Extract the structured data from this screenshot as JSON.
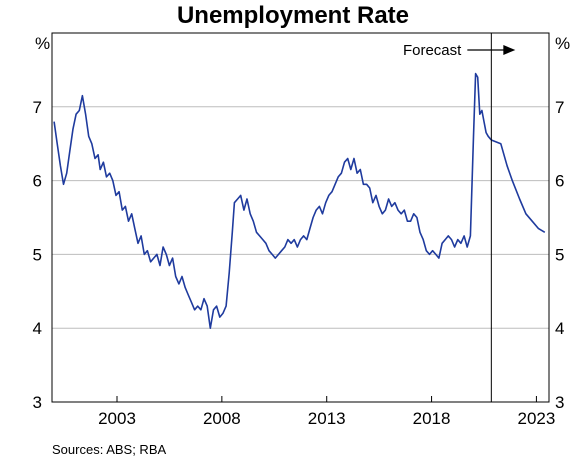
{
  "chart_data": {
    "type": "line",
    "title": "Unemployment Rate",
    "y_unit_left": "%",
    "y_unit_right": "%",
    "ylim": [
      3,
      8
    ],
    "yticks": [
      3,
      4,
      5,
      6,
      7
    ],
    "xlim": [
      1999.9,
      2023.6
    ],
    "xticks": [
      2003,
      2008,
      2013,
      2018,
      2023
    ],
    "grid": "horizontal",
    "forecast_start": 2020.85,
    "forecast_label": "Forecast",
    "source": "Sources: ABS; RBA",
    "series": [
      {
        "role": "actual",
        "color": "#1f3b9e",
        "x": [
          2000.0,
          2000.15,
          2000.3,
          2000.45,
          2000.6,
          2000.75,
          2000.9,
          2001.05,
          2001.2,
          2001.35,
          2001.5,
          2001.65,
          2001.8,
          2001.95,
          2002.1,
          2002.2,
          2002.35,
          2002.5,
          2002.65,
          2002.8,
          2002.95,
          2003.1,
          2003.25,
          2003.4,
          2003.55,
          2003.7,
          2003.85,
          2004.0,
          2004.15,
          2004.3,
          2004.45,
          2004.6,
          2004.75,
          2004.9,
          2005.05,
          2005.2,
          2005.35,
          2005.5,
          2005.65,
          2005.8,
          2005.95,
          2006.1,
          2006.25,
          2006.4,
          2006.55,
          2006.7,
          2006.85,
          2007.0,
          2007.15,
          2007.3,
          2007.45,
          2007.6,
          2007.75,
          2007.9,
          2008.05,
          2008.2,
          2008.35,
          2008.5,
          2008.6,
          2008.75,
          2008.9,
          2009.05,
          2009.2,
          2009.35,
          2009.5,
          2009.65,
          2009.8,
          2009.95,
          2010.1,
          2010.25,
          2010.4,
          2010.55,
          2010.7,
          2010.85,
          2011.0,
          2011.15,
          2011.3,
          2011.45,
          2011.6,
          2011.75,
          2011.9,
          2012.05,
          2012.2,
          2012.35,
          2012.5,
          2012.65,
          2012.8,
          2012.95,
          2013.1,
          2013.25,
          2013.4,
          2013.55,
          2013.7,
          2013.85,
          2014.0,
          2014.15,
          2014.3,
          2014.45,
          2014.6,
          2014.75,
          2014.9,
          2015.05,
          2015.2,
          2015.35,
          2015.5,
          2015.65,
          2015.8,
          2015.95,
          2016.1,
          2016.25,
          2016.4,
          2016.55,
          2016.7,
          2016.85,
          2017.0,
          2017.15,
          2017.3,
          2017.45,
          2017.6,
          2017.75,
          2017.9,
          2018.05,
          2018.2,
          2018.35,
          2018.5,
          2018.65,
          2018.8,
          2018.95,
          2019.1,
          2019.25,
          2019.4,
          2019.55,
          2019.7,
          2019.85,
          2020.0,
          2020.1,
          2020.2,
          2020.3,
          2020.4,
          2020.5,
          2020.6,
          2020.7,
          2020.85
        ],
        "y": [
          6.8,
          6.5,
          6.2,
          5.95,
          6.1,
          6.4,
          6.7,
          6.9,
          6.95,
          7.15,
          6.9,
          6.6,
          6.5,
          6.3,
          6.35,
          6.15,
          6.25,
          6.05,
          6.1,
          6.0,
          5.8,
          5.85,
          5.6,
          5.65,
          5.45,
          5.55,
          5.35,
          5.15,
          5.25,
          5.0,
          5.05,
          4.9,
          4.95,
          5.0,
          4.85,
          5.1,
          5.0,
          4.85,
          4.95,
          4.7,
          4.6,
          4.7,
          4.55,
          4.45,
          4.35,
          4.25,
          4.3,
          4.25,
          4.4,
          4.3,
          4.0,
          4.25,
          4.3,
          4.15,
          4.2,
          4.3,
          4.75,
          5.3,
          5.7,
          5.75,
          5.8,
          5.6,
          5.75,
          5.55,
          5.45,
          5.3,
          5.25,
          5.2,
          5.15,
          5.05,
          5.0,
          4.95,
          5.0,
          5.05,
          5.1,
          5.2,
          5.15,
          5.2,
          5.1,
          5.2,
          5.25,
          5.2,
          5.35,
          5.5,
          5.6,
          5.65,
          5.55,
          5.7,
          5.8,
          5.85,
          5.95,
          6.05,
          6.1,
          6.25,
          6.3,
          6.15,
          6.3,
          6.1,
          6.15,
          5.95,
          5.95,
          5.9,
          5.7,
          5.8,
          5.65,
          5.55,
          5.6,
          5.75,
          5.65,
          5.7,
          5.6,
          5.55,
          5.6,
          5.45,
          5.45,
          5.55,
          5.5,
          5.3,
          5.2,
          5.05,
          5.0,
          5.05,
          5.0,
          4.95,
          5.15,
          5.2,
          5.25,
          5.2,
          5.1,
          5.2,
          5.15,
          5.25,
          5.1,
          5.25,
          6.6,
          7.45,
          7.4,
          6.9,
          6.95,
          6.8,
          6.65,
          6.6,
          6.55
        ]
      },
      {
        "role": "forecast",
        "color": "#1f3b9e",
        "x": [
          2020.85,
          2021.3,
          2021.6,
          2021.85,
          2022.2,
          2022.5,
          2022.8,
          2023.1,
          2023.4
        ],
        "y": [
          6.55,
          6.5,
          6.2,
          6.0,
          5.75,
          5.55,
          5.45,
          5.35,
          5.3
        ]
      }
    ]
  }
}
